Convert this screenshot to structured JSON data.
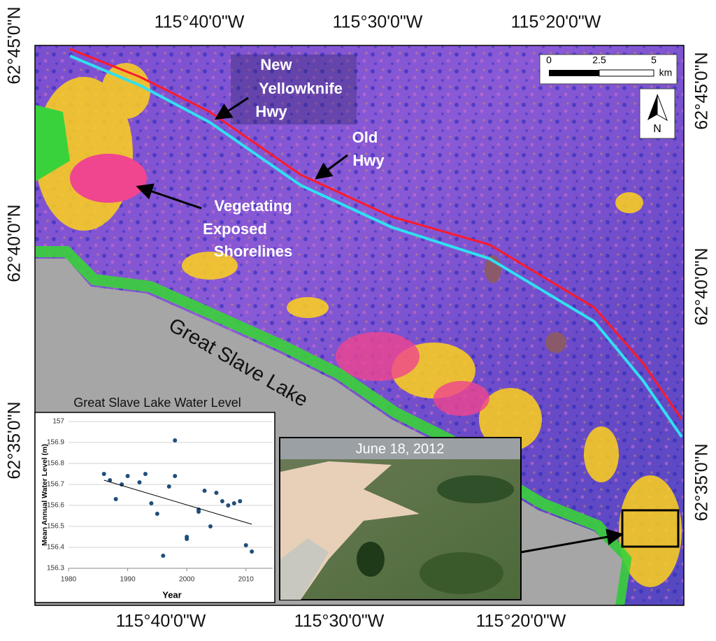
{
  "map": {
    "top_labels": [
      "115°40'0\"W",
      "115°30'0\"W",
      "115°20'0\"W"
    ],
    "bottom_labels": [
      "115°40'0\"W",
      "115°30'0\"W",
      "115°20'0\"W"
    ],
    "left_labels": [
      "62°45'0\"N",
      "62°40'0\"N",
      "62°35'0\"N"
    ],
    "right_labels": [
      "62°45'0\"N",
      "62°40'0\"N",
      "62°35'0\"N"
    ],
    "annotations": {
      "new_hwy": [
        "New",
        "Yellowknife",
        "Hwy"
      ],
      "old_hwy": [
        "Old",
        "Hwy"
      ],
      "shorelines": [
        "Vegetating",
        "Exposed",
        "Shorelines"
      ],
      "lake": "Great Slave Lake"
    },
    "scale_bar": {
      "ticks": [
        0,
        2.5,
        5
      ],
      "unit": "km"
    },
    "north": "N",
    "photo_caption": "June 18, 2012"
  },
  "chart_data": {
    "type": "scatter",
    "title": "Great Slave Lake Water Level",
    "x_label": "Year",
    "y_label": "Mean Annual Water Level (m)",
    "x": [
      1986,
      1987,
      1988,
      1989,
      1990,
      1992,
      1993,
      1994,
      1995,
      1996,
      1997,
      1998,
      1998,
      2000,
      2000,
      2002,
      2002,
      2003,
      2004,
      2005,
      2006,
      2007,
      2008,
      2009,
      2010,
      2011
    ],
    "values": [
      156.75,
      156.72,
      156.63,
      156.7,
      156.74,
      156.71,
      156.75,
      156.61,
      156.56,
      156.36,
      156.69,
      156.91,
      156.74,
      156.45,
      156.44,
      156.58,
      156.57,
      156.67,
      156.5,
      156.66,
      156.62,
      156.6,
      156.61,
      156.62,
      156.41,
      156.38
    ],
    "color": "#1f4e79",
    "trendline": {
      "x": [
        1986,
        2011
      ],
      "values": [
        156.72,
        156.51
      ],
      "color": "#000000"
    },
    "xlim": [
      1980,
      2015
    ],
    "xticks": [
      1980,
      1990,
      2000,
      2010
    ],
    "ylim": [
      156.3,
      157
    ],
    "yticks": [
      156.3,
      156.4,
      156.5,
      156.6,
      156.7,
      156.8,
      156.9,
      157
    ],
    "grid": true
  }
}
